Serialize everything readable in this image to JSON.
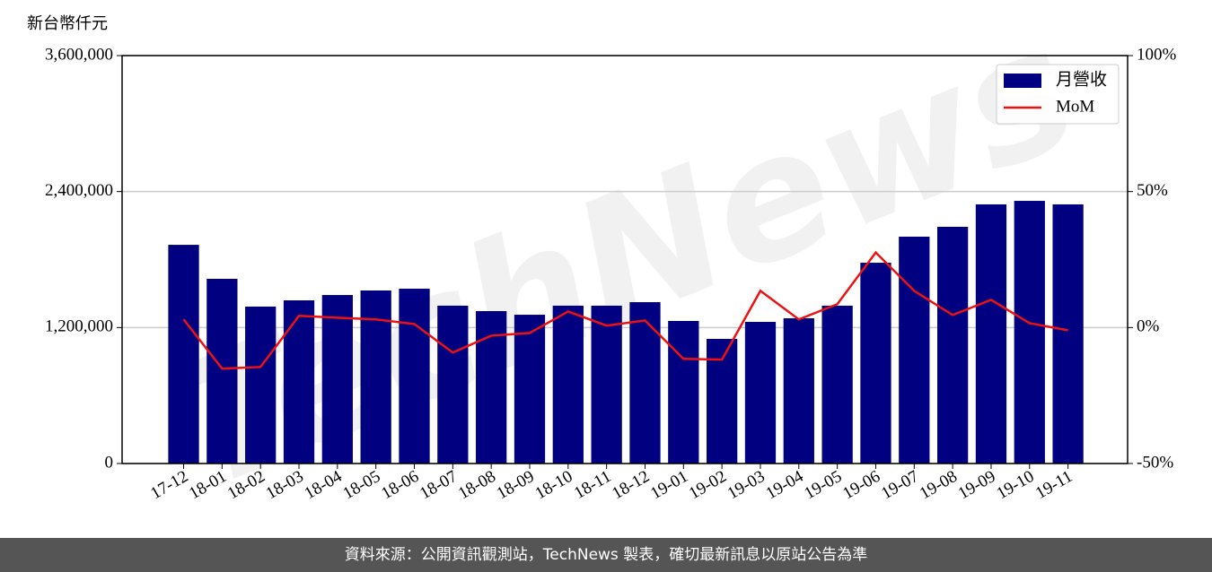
{
  "chart_data": {
    "type": "bar_line",
    "y_axis_label": "新台幣仟元",
    "watermark": "TechNews",
    "categories": [
      "17-12",
      "18-01",
      "18-02",
      "18-03",
      "18-04",
      "18-05",
      "18-06",
      "18-07",
      "18-08",
      "18-09",
      "18-10",
      "18-11",
      "18-12",
      "19-01",
      "19-02",
      "19-03",
      "19-04",
      "19-05",
      "19-06",
      "19-07",
      "19-08",
      "19-09",
      "19-10",
      "19-11"
    ],
    "series": [
      {
        "name": "月營收",
        "type": "bar",
        "color": "#000080",
        "values": [
          1930000,
          1630000,
          1385000,
          1440000,
          1487000,
          1527000,
          1543000,
          1393000,
          1345000,
          1313000,
          1393000,
          1393000,
          1424000,
          1258000,
          1100000,
          1250000,
          1282000,
          1393000,
          1772000,
          2002000,
          2089000,
          2287000,
          2318000,
          2287000
        ]
      },
      {
        "name": "MoM",
        "type": "line",
        "axis": "y2",
        "color": "#ee1111",
        "values": [
          3.0,
          -15.1,
          -14.5,
          4.3,
          3.6,
          3.0,
          1.3,
          -9.2,
          -3.0,
          -2.0,
          5.9,
          0.7,
          2.6,
          -11.5,
          -11.8,
          13.5,
          3.0,
          8.6,
          27.6,
          13.5,
          4.6,
          10.2,
          1.6,
          -1.0
        ]
      }
    ],
    "ylim": [
      0,
      3600000
    ],
    "yticks": [
      0,
      {
        "value": 1200000,
        "label": "1,200,000"
      },
      {
        "value": 2400000,
        "label": "2,400,000"
      },
      {
        "value": 3600000,
        "label": "3,600,000"
      }
    ],
    "y2lim": [
      -50,
      100
    ],
    "y2ticks": [
      {
        "value": -50,
        "label": "-50%"
      },
      {
        "value": 0,
        "label": "0%"
      },
      {
        "value": 50,
        "label": "50%"
      },
      {
        "value": 100,
        "label": "100%"
      }
    ],
    "grid": true,
    "legend": "upper right"
  },
  "footer": "資料來源：公開資訊觀測站，TechNews 製表，確切最新訊息以原站公告為準"
}
